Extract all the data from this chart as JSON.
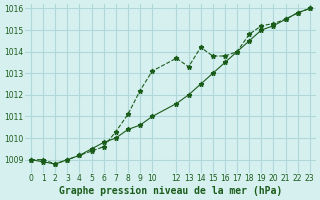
{
  "title": "Graphe pression niveau de la mer (hPa)",
  "bg_color": "#d6f0f0",
  "grid_color": "#b0d8d8",
  "line_color": "#1a5c1a",
  "x_labels": [
    "0",
    "1",
    "2",
    "3",
    "4",
    "5",
    "6",
    "7",
    "8",
    "9",
    "10",
    "12",
    "13",
    "14",
    "15",
    "16",
    "17",
    "18",
    "19",
    "20",
    "21",
    "22",
    "23"
  ],
  "x_values": [
    0,
    1,
    2,
    3,
    4,
    5,
    6,
    7,
    8,
    9,
    10,
    12,
    13,
    14,
    15,
    16,
    17,
    18,
    19,
    20,
    21,
    22,
    23
  ],
  "line1_x": [
    0,
    1,
    2,
    3,
    4,
    5,
    6,
    7,
    8,
    9,
    10,
    12,
    13,
    14,
    15,
    16,
    17,
    18,
    19,
    20,
    21,
    22,
    23
  ],
  "line1_y": [
    1009.0,
    1009.0,
    1008.8,
    1009.0,
    1009.2,
    1009.4,
    1009.6,
    1010.3,
    1011.1,
    1012.2,
    1013.1,
    1013.7,
    1013.3,
    1014.2,
    1013.8,
    1013.8,
    1014.0,
    1014.8,
    1015.2,
    1015.3,
    1015.5,
    1015.8,
    1016.0
  ],
  "line2_x": [
    0,
    1,
    2,
    3,
    4,
    5,
    6,
    7,
    8,
    9,
    10,
    12,
    13,
    14,
    15,
    16,
    17,
    18,
    19,
    20,
    21,
    22,
    23
  ],
  "line2_y": [
    1009.0,
    1008.9,
    1008.8,
    1009.0,
    1009.2,
    1009.5,
    1009.8,
    1010.0,
    1010.4,
    1010.6,
    1011.0,
    1011.6,
    1012.0,
    1012.5,
    1013.0,
    1013.5,
    1014.0,
    1014.5,
    1015.0,
    1015.2,
    1015.5,
    1015.8,
    1016.0
  ],
  "ylim": [
    1008.4,
    1016.2
  ],
  "yticks": [
    1009,
    1010,
    1011,
    1012,
    1013,
    1014,
    1015,
    1016
  ],
  "title_fontsize": 7,
  "tick_fontsize": 5.5
}
